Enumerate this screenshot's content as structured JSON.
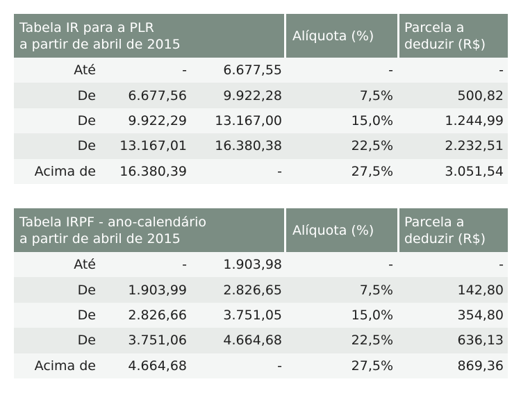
{
  "tables": [
    {
      "title_line1": "Tabela IR para a PLR",
      "title_line2": "a partir de abril de 2015",
      "col_aliquota": "Alíquota (%)",
      "col_parcela_line1": "Parcela a",
      "col_parcela_line2": "deduzir (R$)",
      "rows": [
        {
          "label": "Até",
          "from": "-",
          "to": "6.677,55",
          "rate": "-",
          "deduct": "-"
        },
        {
          "label": "De",
          "from": "6.677,56",
          "to": "9.922,28",
          "rate": "7,5%",
          "deduct": "500,82"
        },
        {
          "label": "De",
          "from": "9.922,29",
          "to": "13.167,00",
          "rate": "15,0%",
          "deduct": "1.244,99"
        },
        {
          "label": "De",
          "from": "13.167,01",
          "to": "16.380,38",
          "rate": "22,5%",
          "deduct": "2.232,51"
        },
        {
          "label": "Acima de",
          "from": "16.380,39",
          "to": "-",
          "rate": "27,5%",
          "deduct": "3.051,54"
        }
      ]
    },
    {
      "title_line1": "Tabela IRPF - ano-calendário",
      "title_line2": "a partir de abril de 2015",
      "col_aliquota": "Alíquota (%)",
      "col_parcela_line1": "Parcela a",
      "col_parcela_line2": "deduzir (R$)",
      "rows": [
        {
          "label": "Até",
          "from": "-",
          "to": "1.903,98",
          "rate": "-",
          "deduct": "-"
        },
        {
          "label": "De",
          "from": "1.903,99",
          "to": "2.826,65",
          "rate": "7,5%",
          "deduct": "142,80"
        },
        {
          "label": "De",
          "from": "2.826,66",
          "to": "3.751,05",
          "rate": "15,0%",
          "deduct": "354,80"
        },
        {
          "label": "De",
          "from": "3.751,06",
          "to": "4.664,68",
          "rate": "22,5%",
          "deduct": "636,13"
        },
        {
          "label": "Acima de",
          "from": "4.664,68",
          "to": "-",
          "rate": "27,5%",
          "deduct": "869,36"
        }
      ]
    }
  ]
}
